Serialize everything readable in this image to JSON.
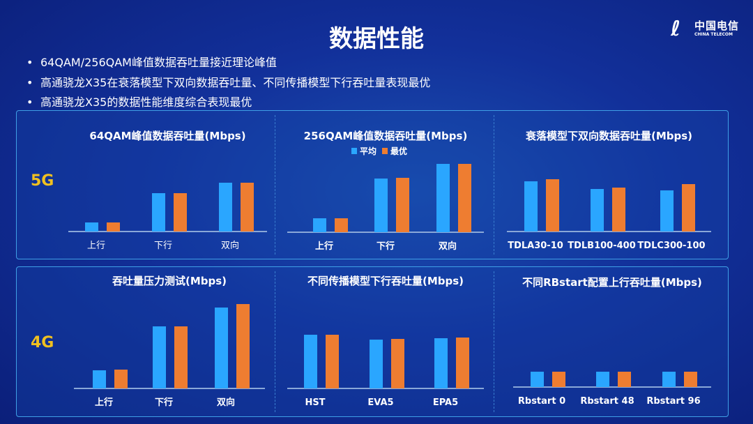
{
  "title": "数据性能",
  "logo": {
    "cn": "中国电信",
    "en": "CHINA TELECOM"
  },
  "bullets": [
    "64QAM/256QAM峰值数据吞吐量接近理论峰值",
    "高通骁龙X35在衰落模型下双向数据吞吐量、不同传播模型下行吞吐量表现最优",
    "高通骁龙X35的数据性能维度综合表现最优"
  ],
  "rows": [
    "5G",
    "4G"
  ],
  "colors": {
    "avg": "#2aa6ff",
    "best": "#ee7d31"
  },
  "chart_data": [
    {
      "type": "bar",
      "title": "64QAM峰值数据吞吐量(Mbps)",
      "categories": [
        "上行",
        "下行",
        "双向"
      ],
      "series": [
        {
          "name": "平均",
          "values": [
            13,
            55,
            70
          ]
        },
        {
          "name": "最优",
          "values": [
            13,
            55,
            70
          ]
        }
      ]
    },
    {
      "type": "bar",
      "title": "256QAM峰值数据吞吐量(Mbps)",
      "legend": "top",
      "categories": [
        "上行",
        "下行",
        "双向"
      ],
      "series": [
        {
          "name": "平均",
          "values": [
            20,
            77,
            98
          ]
        },
        {
          "name": "最优",
          "values": [
            20,
            78,
            98
          ]
        }
      ]
    },
    {
      "type": "bar",
      "title": "衰落模型下双向数据吞吐量(Mbps)",
      "categories": [
        "TDLA30-10",
        "TDLB100-400",
        "TDLC300-100"
      ],
      "series": [
        {
          "name": "平均",
          "values": [
            72,
            61,
            59
          ]
        },
        {
          "name": "最优",
          "values": [
            75,
            63,
            68
          ]
        }
      ]
    },
    {
      "type": "bar",
      "title": "吞吐量压力测试(Mbps)",
      "categories": [
        "上行",
        "下行",
        "双向"
      ],
      "series": [
        {
          "name": "平均",
          "values": [
            26,
            89,
            116
          ]
        },
        {
          "name": "最优",
          "values": [
            27,
            89,
            121
          ]
        }
      ]
    },
    {
      "type": "bar",
      "title": "不同传播模型下行吞吐量(Mbps)",
      "categories": [
        "HST",
        "EVA5",
        "EPA5"
      ],
      "series": [
        {
          "name": "平均",
          "values": [
            77,
            70,
            72
          ]
        },
        {
          "name": "最优",
          "values": [
            77,
            71,
            73
          ]
        }
      ]
    },
    {
      "type": "bar",
      "title": "不同RBstart配置上行吞吐量(Mbps)",
      "categories": [
        "Rbstart 0",
        "Rbstart 48",
        "Rbstart 96"
      ],
      "series": [
        {
          "name": "平均",
          "values": [
            22,
            22,
            22
          ]
        },
        {
          "name": "最优",
          "values": [
            22,
            22,
            22
          ]
        }
      ]
    }
  ]
}
